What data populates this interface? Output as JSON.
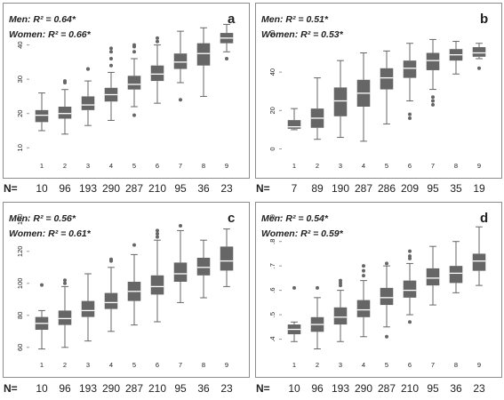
{
  "chart_data": [
    {
      "type": "box",
      "letter": "a",
      "annotation_men": "Men: R² = 0.64*",
      "annotation_women": "Women: R² = 0.66*",
      "categories": [
        "1",
        "2",
        "3",
        "4",
        "5",
        "6",
        "7",
        "8",
        "9"
      ],
      "yticks": [
        "10",
        "20",
        "30",
        "40"
      ],
      "ytick_values": [
        10,
        20,
        30,
        40
      ],
      "ylim": [
        8,
        50
      ],
      "n_label": "N=",
      "n_values": [
        "10",
        "96",
        "193",
        "290",
        "287",
        "210",
        "95",
        "36",
        "23"
      ],
      "boxes": [
        {
          "whislo": 15,
          "q1": 17.5,
          "med": 19.5,
          "q3": 21,
          "whishi": 26,
          "fliers": []
        },
        {
          "whislo": 14,
          "q1": 18.5,
          "med": 20,
          "q3": 22,
          "whishi": 27,
          "fliers": [
            29,
            29.5
          ]
        },
        {
          "whislo": 16.5,
          "q1": 21,
          "med": 22.5,
          "q3": 25,
          "whishi": 29.5,
          "fliers": [
            33,
            33
          ]
        },
        {
          "whislo": 18,
          "q1": 23.5,
          "med": 25.5,
          "q3": 27.5,
          "whishi": 32,
          "fliers": [
            34,
            36,
            38,
            39
          ]
        },
        {
          "whislo": 22,
          "q1": 27,
          "med": 28.5,
          "q3": 31,
          "whishi": 36,
          "fliers": [
            19.5,
            38,
            39.5,
            40
          ]
        },
        {
          "whislo": 23,
          "q1": 29.5,
          "med": 31.5,
          "q3": 34,
          "whishi": 40,
          "fliers": [
            41,
            42
          ]
        },
        {
          "whislo": 29,
          "q1": 33,
          "med": 35,
          "q3": 37.5,
          "whishi": 44,
          "fliers": [
            24
          ]
        },
        {
          "whislo": 25,
          "q1": 34,
          "med": 37.5,
          "q3": 40.5,
          "whishi": 45,
          "fliers": []
        },
        {
          "whislo": 38,
          "q1": 40.5,
          "med": 42,
          "q3": 43.5,
          "whishi": 46,
          "fliers": [
            36
          ]
        }
      ]
    },
    {
      "type": "box",
      "letter": "b",
      "annotation_men": "Men: R² = 0.51*",
      "annotation_women": "Women: R² = 0.53*",
      "categories": [
        "1",
        "2",
        "3",
        "4",
        "5",
        "6",
        "7",
        "8",
        "9"
      ],
      "yticks": [
        "0",
        "20",
        "40",
        "60"
      ],
      "ytick_values": [
        0,
        20,
        40,
        60
      ],
      "ylim": [
        -3,
        72
      ],
      "n_label": "N=",
      "n_values": [
        "7",
        "89",
        "190",
        "287",
        "286",
        "209",
        "95",
        "35",
        "19"
      ],
      "boxes": [
        {
          "whislo": 10,
          "q1": 10.5,
          "med": 11.5,
          "q3": 15,
          "whishi": 21,
          "fliers": []
        },
        {
          "whislo": 5,
          "q1": 11,
          "med": 16,
          "q3": 21,
          "whishi": 37,
          "fliers": []
        },
        {
          "whislo": 6,
          "q1": 17,
          "med": 25,
          "q3": 32,
          "whishi": 46,
          "fliers": []
        },
        {
          "whislo": 4,
          "q1": 22,
          "med": 29,
          "q3": 36,
          "whishi": 50,
          "fliers": []
        },
        {
          "whislo": 13,
          "q1": 31,
          "med": 37,
          "q3": 42,
          "whishi": 51,
          "fliers": []
        },
        {
          "whislo": 25,
          "q1": 37,
          "med": 42,
          "q3": 46,
          "whishi": 55,
          "fliers": [
            16,
            18
          ]
        },
        {
          "whislo": 31,
          "q1": 41,
          "med": 46,
          "q3": 50,
          "whishi": 57,
          "fliers": [
            23,
            25,
            27
          ]
        },
        {
          "whislo": 39,
          "q1": 46,
          "med": 49,
          "q3": 52,
          "whishi": 56,
          "fliers": []
        },
        {
          "whislo": 47,
          "q1": 48,
          "med": 50,
          "q3": 53,
          "whishi": 55,
          "fliers": [
            42
          ]
        }
      ]
    },
    {
      "type": "box",
      "letter": "c",
      "annotation_men": "Men: R² = 0.56*",
      "annotation_women": "Women: R² = 0.61*",
      "categories": [
        "1",
        "2",
        "3",
        "4",
        "5",
        "6",
        "7",
        "8",
        "9"
      ],
      "yticks": [
        "60",
        "80",
        "100",
        "120",
        "140"
      ],
      "ytick_values": [
        60,
        80,
        100,
        120,
        140
      ],
      "ylim": [
        56,
        146
      ],
      "n_label": "N=",
      "n_values": [
        "10",
        "96",
        "193",
        "290",
        "287",
        "210",
        "95",
        "36",
        "23"
      ],
      "boxes": [
        {
          "whislo": 59,
          "q1": 71,
          "med": 75,
          "q3": 79,
          "whishi": 83,
          "fliers": [
            99
          ]
        },
        {
          "whislo": 60,
          "q1": 74,
          "med": 78,
          "q3": 83,
          "whishi": 98,
          "fliers": [
            100,
            102
          ]
        },
        {
          "whislo": 64,
          "q1": 79,
          "med": 83,
          "q3": 89,
          "whishi": 106,
          "fliers": []
        },
        {
          "whislo": 70,
          "q1": 84,
          "med": 88,
          "q3": 94,
          "whishi": 110,
          "fliers": [
            114,
            115
          ]
        },
        {
          "whislo": 74,
          "q1": 89,
          "med": 95,
          "q3": 101,
          "whishi": 118,
          "fliers": [
            124
          ]
        },
        {
          "whislo": 76,
          "q1": 93,
          "med": 98,
          "q3": 105,
          "whishi": 127,
          "fliers": [
            129,
            131,
            133
          ]
        },
        {
          "whislo": 88,
          "q1": 101,
          "med": 106,
          "q3": 113,
          "whishi": 133,
          "fliers": [
            136
          ]
        },
        {
          "whislo": 91,
          "q1": 105,
          "med": 110,
          "q3": 116,
          "whishi": 127,
          "fliers": []
        },
        {
          "whislo": 98,
          "q1": 108,
          "med": 114,
          "q3": 123,
          "whishi": 134,
          "fliers": []
        }
      ]
    },
    {
      "type": "box",
      "letter": "d",
      "annotation_men": "Men: R² = 0.54*",
      "annotation_women": "Women: R² = 0.59*",
      "categories": [
        "1",
        "2",
        "3",
        "4",
        "5",
        "6",
        "7",
        "8",
        "9"
      ],
      "yticks": [
        ".4",
        ".5",
        ".6",
        ".7",
        ".8",
        ".9"
      ],
      "ytick_values": [
        0.4,
        0.5,
        0.6,
        0.7,
        0.8,
        0.9
      ],
      "ylim": [
        0.34,
        0.93
      ],
      "n_label": "N=",
      "n_values": [
        "10",
        "96",
        "193",
        "290",
        "287",
        "210",
        "95",
        "36",
        "23"
      ],
      "boxes": [
        {
          "whislo": 0.39,
          "q1": 0.42,
          "med": 0.44,
          "q3": 0.46,
          "whishi": 0.47,
          "fliers": [
            0.61
          ]
        },
        {
          "whislo": 0.36,
          "q1": 0.43,
          "med": 0.46,
          "q3": 0.49,
          "whishi": 0.57,
          "fliers": [
            0.61
          ]
        },
        {
          "whislo": 0.39,
          "q1": 0.46,
          "med": 0.49,
          "q3": 0.53,
          "whishi": 0.6,
          "fliers": [
            0.62,
            0.63,
            0.64
          ]
        },
        {
          "whislo": 0.41,
          "q1": 0.49,
          "med": 0.52,
          "q3": 0.56,
          "whishi": 0.64,
          "fliers": [
            0.66,
            0.68,
            0.7
          ]
        },
        {
          "whislo": 0.45,
          "q1": 0.54,
          "med": 0.57,
          "q3": 0.61,
          "whishi": 0.7,
          "fliers": [
            0.41,
            0.71
          ]
        },
        {
          "whislo": 0.5,
          "q1": 0.57,
          "med": 0.6,
          "q3": 0.64,
          "whishi": 0.71,
          "fliers": [
            0.47,
            0.73,
            0.74,
            0.76
          ]
        },
        {
          "whislo": 0.54,
          "q1": 0.62,
          "med": 0.65,
          "q3": 0.69,
          "whishi": 0.78,
          "fliers": []
        },
        {
          "whislo": 0.59,
          "q1": 0.63,
          "med": 0.67,
          "q3": 0.7,
          "whishi": 0.8,
          "fliers": []
        },
        {
          "whislo": 0.62,
          "q1": 0.68,
          "med": 0.72,
          "q3": 0.75,
          "whishi": 0.86,
          "fliers": []
        }
      ]
    }
  ],
  "colors": {
    "box_fill": "#666666",
    "median_line": "#ffffff",
    "whisker": "#666666",
    "text": "#222222",
    "border": "#8c8c8c"
  }
}
